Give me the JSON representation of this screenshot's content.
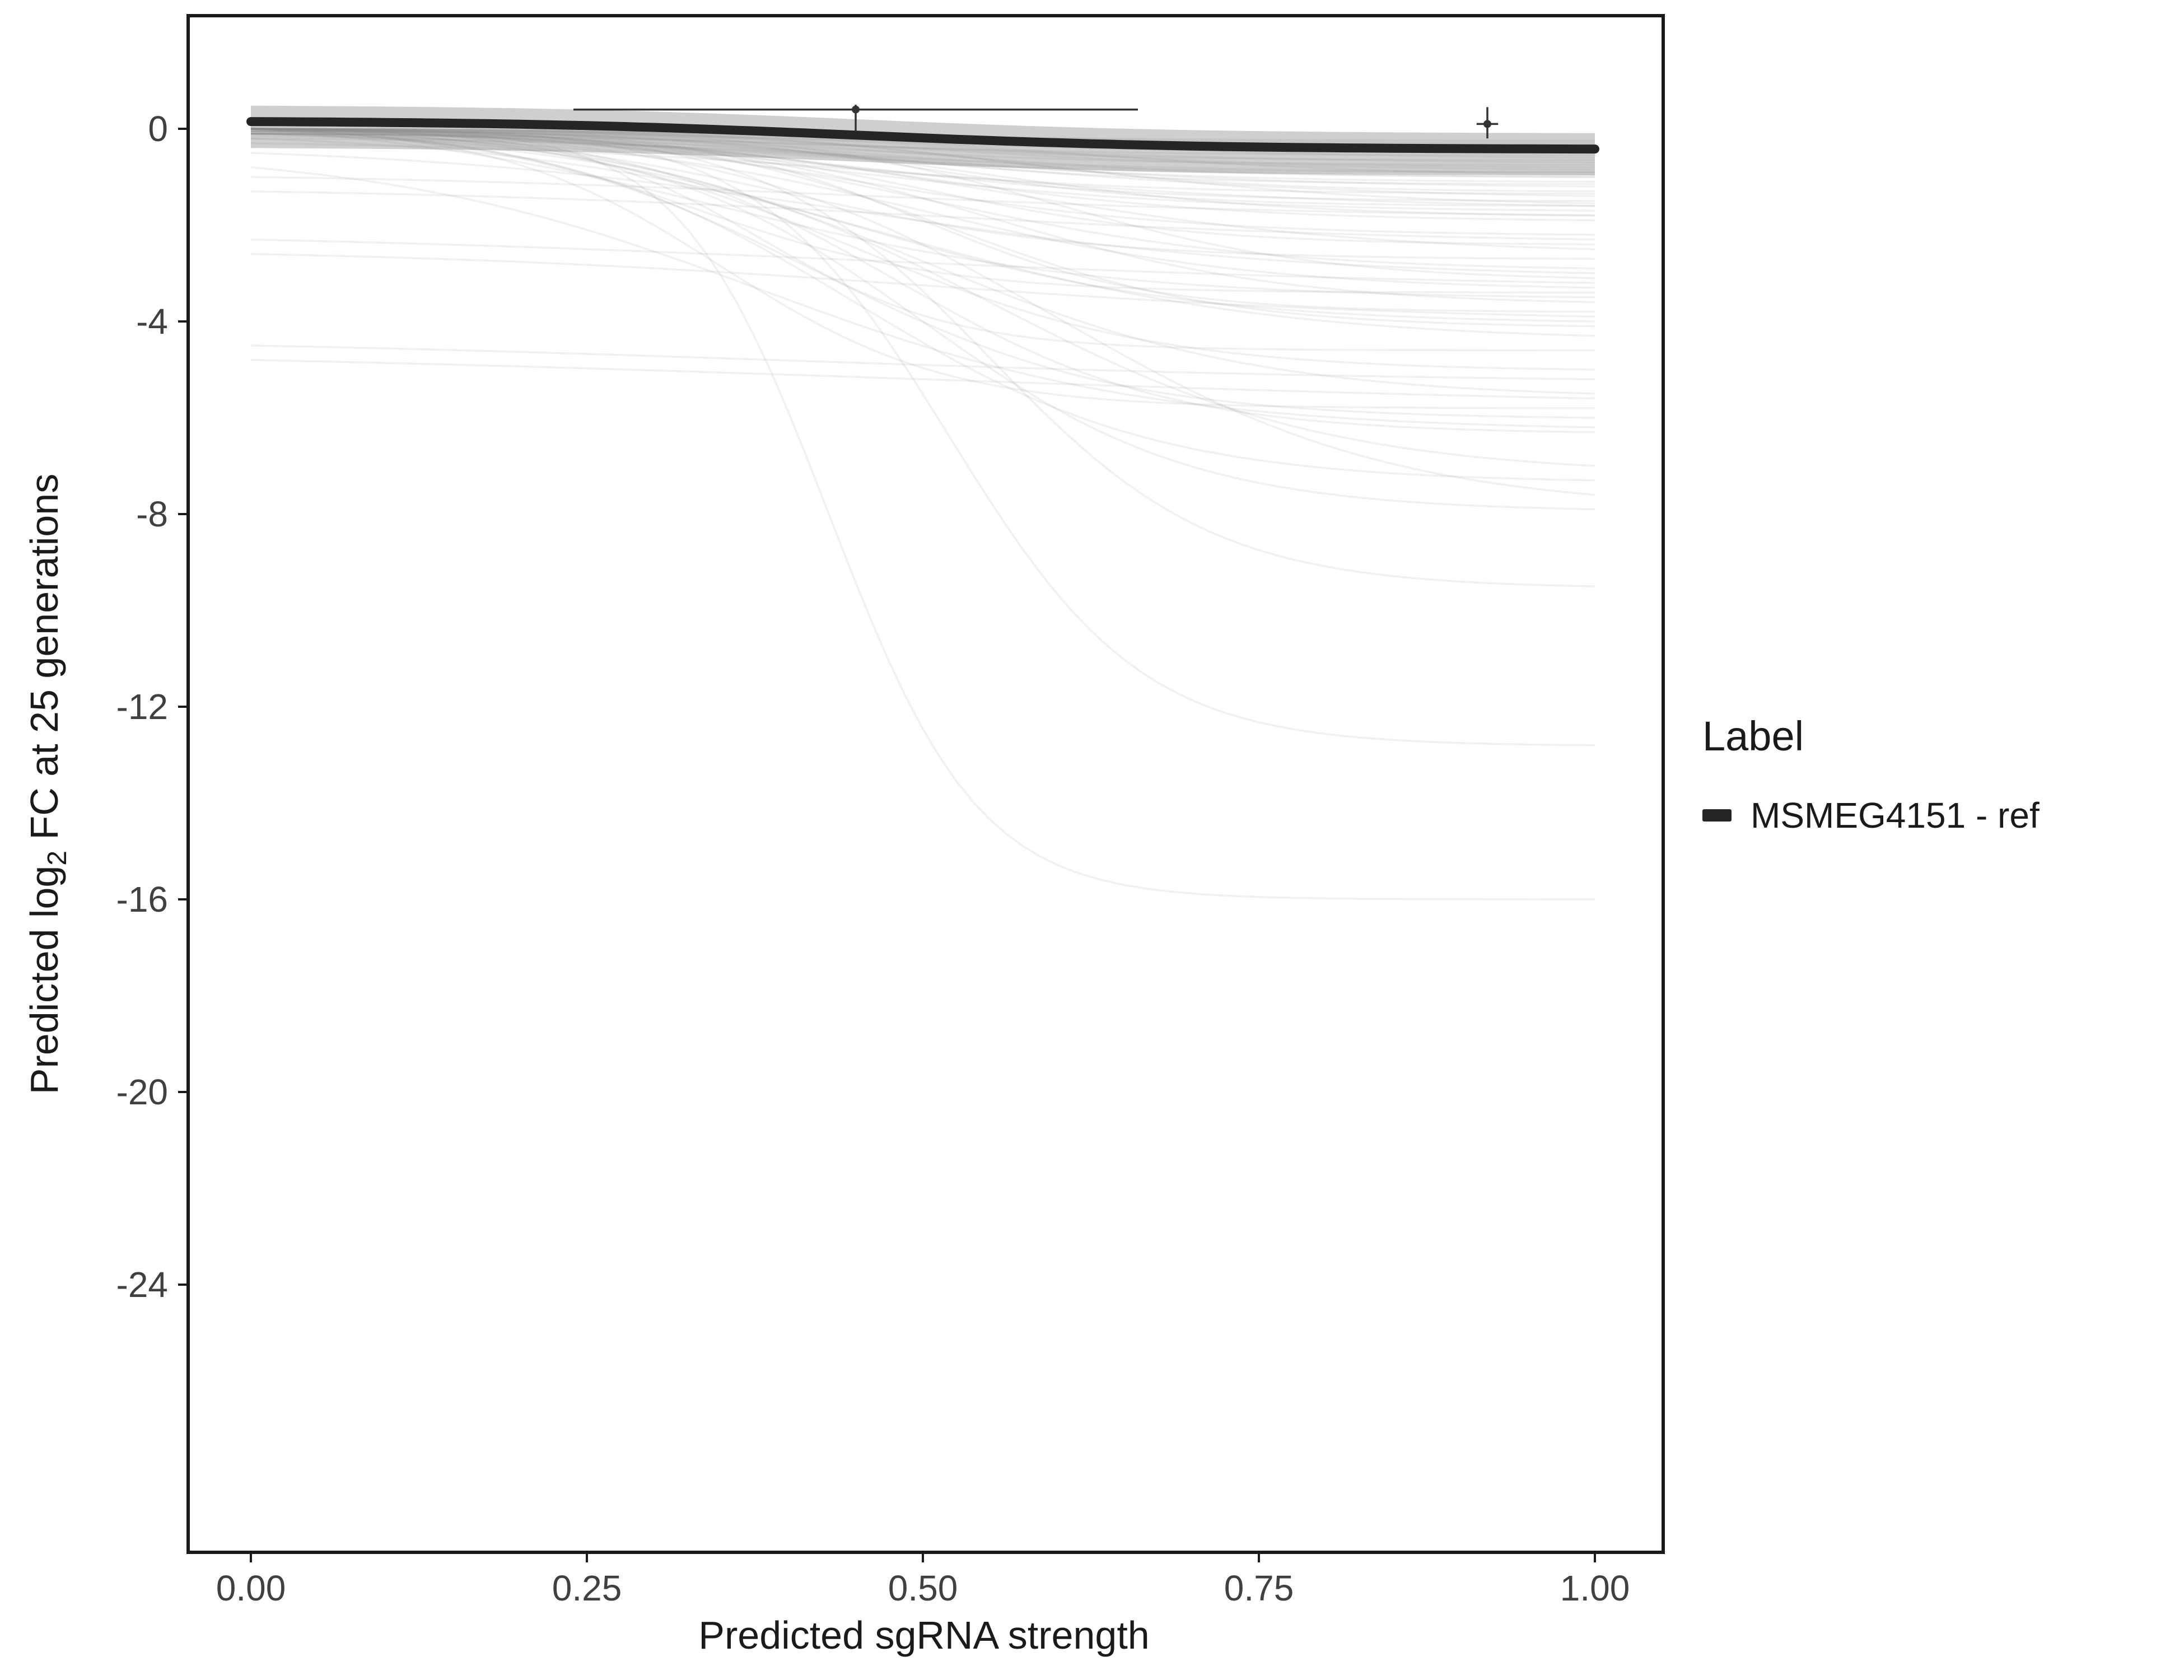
{
  "axes": {
    "x": {
      "title": "Predicted sgRNA strength"
    },
    "y": {
      "title_prefix": "Predicted  log",
      "title_sub": "2",
      "title_suffix": " FC at 25 generations"
    }
  },
  "legend": {
    "title": "Label",
    "items": [
      {
        "label": "MSMEG4151 - ref",
        "swatch_color": "#252525"
      }
    ]
  },
  "chart_data": {
    "type": "line",
    "title": "",
    "xlabel": "Predicted sgRNA strength",
    "ylabel": "Predicted log2 FC at 25 generations",
    "xlim": [
      -0.046,
      1.05
    ],
    "ylim": [
      -29.5,
      2.3
    ],
    "x_ticks": [
      0,
      0.25,
      0.5,
      0.75,
      1
    ],
    "x_tick_labels": [
      "0.00",
      "0.25",
      "0.50",
      "0.75",
      "1.00"
    ],
    "y_ticks": [
      0,
      -4,
      -8,
      -12,
      -16,
      -20,
      -24
    ],
    "y_tick_labels": [
      "0",
      "-4",
      "-8",
      "-12",
      "-16",
      "-20",
      "-24"
    ],
    "grid": false,
    "legend_position": "right",
    "reference_curve": {
      "name": "MSMEG4151 - ref",
      "color": "#252525",
      "stroke_width": 16,
      "y_start": 0.15,
      "y_end": -0.42,
      "midpoint": 0.45,
      "steepness": 8,
      "ribbon_above": 0.33,
      "ribbon_below": 0.55,
      "ribbon_color": "#a0a0a0",
      "ribbon_opacity": 0.5
    },
    "background_curves": {
      "color": "#8a8a8a",
      "opacity": 0.12,
      "stroke_width": 3.5,
      "params": [
        [
          0,
          -0.25,
          0.4,
          6
        ],
        [
          0,
          -0.3,
          0.5,
          7
        ],
        [
          -0.05,
          -0.4,
          0.45,
          8
        ],
        [
          0,
          -0.45,
          0.55,
          6
        ],
        [
          -0.1,
          -0.5,
          0.5,
          9
        ],
        [
          0,
          -0.55,
          0.35,
          7
        ],
        [
          -0.05,
          -0.6,
          0.6,
          8
        ],
        [
          0,
          -0.65,
          0.45,
          10
        ],
        [
          -0.1,
          -0.7,
          0.5,
          6
        ],
        [
          0,
          -0.75,
          0.4,
          8
        ],
        [
          -0.05,
          -0.8,
          0.55,
          9
        ],
        [
          0,
          -0.85,
          0.5,
          7
        ],
        [
          -0.1,
          -0.9,
          0.45,
          11
        ],
        [
          0,
          -0.95,
          0.6,
          8
        ],
        [
          -0.05,
          -1,
          0.5,
          9
        ],
        [
          0,
          -1,
          0.35,
          6
        ],
        [
          -0.15,
          -0.9,
          0.42,
          7
        ],
        [
          -0.2,
          -1.1,
          0.48,
          8
        ],
        [
          0,
          -1.15,
          0.45,
          9
        ],
        [
          -0.1,
          -1.2,
          0.5,
          7
        ],
        [
          0,
          -1.3,
          0.55,
          10
        ],
        [
          -0.05,
          -1.35,
          0.4,
          8
        ],
        [
          0,
          -1.4,
          0.5,
          6
        ],
        [
          -0.1,
          -1.5,
          0.45,
          9
        ],
        [
          0,
          -1.55,
          0.6,
          8
        ],
        [
          -0.05,
          -1.6,
          0.5,
          11
        ],
        [
          0,
          -1.7,
          0.42,
          7
        ],
        [
          -0.1,
          -1.8,
          0.55,
          9
        ],
        [
          0,
          -1.9,
          0.48,
          8
        ],
        [
          -0.3,
          -1.6,
          0.5,
          6
        ],
        [
          0,
          -2.2,
          0.45,
          8
        ],
        [
          -0.1,
          -2.4,
          0.5,
          10
        ],
        [
          0,
          -2.5,
          0.55,
          7
        ],
        [
          -0.05,
          -2.7,
          0.4,
          9
        ],
        [
          0,
          -2.9,
          0.5,
          8
        ],
        [
          -0.5,
          -3,
          0.45,
          6
        ],
        [
          0,
          -3.1,
          0.6,
          10
        ],
        [
          -0.1,
          -3.3,
          0.5,
          8
        ],
        [
          0,
          -3.5,
          0.35,
          7
        ],
        [
          -0.05,
          -3.6,
          0.55,
          9
        ],
        [
          0,
          -3.8,
          0.5,
          12
        ],
        [
          -0.1,
          -4,
          0.45,
          8
        ],
        [
          0,
          -4.1,
          0.52,
          10
        ],
        [
          -0.2,
          -4.3,
          0.48,
          7
        ],
        [
          -1.3,
          -2.3,
          0.5,
          5
        ],
        [
          -2.3,
          -3.2,
          0.45,
          4
        ],
        [
          -2.6,
          -3.9,
          0.5,
          5
        ],
        [
          -4.5,
          -5.2,
          0.4,
          4
        ],
        [
          -4.8,
          -5.6,
          0.5,
          3
        ],
        [
          -1,
          -1.8,
          0.45,
          5
        ],
        [
          -0.8,
          -6.2,
          0.38,
          7
        ],
        [
          0,
          -5,
          0.45,
          9
        ],
        [
          0,
          -5.5,
          0.5,
          8
        ],
        [
          0,
          -6,
          0.42,
          9
        ],
        [
          0,
          -6.3,
          0.48,
          10
        ],
        [
          -0.1,
          -7,
          0.55,
          8
        ],
        [
          0,
          -7.3,
          0.45,
          9
        ],
        [
          0,
          -7.6,
          0.6,
          8
        ],
        [
          -0.1,
          -7.9,
          0.5,
          10
        ],
        [
          0,
          -9.5,
          0.55,
          12
        ],
        [
          0,
          -12.8,
          0.52,
          14
        ],
        [
          0,
          -16,
          0.43,
          18
        ],
        [
          0,
          -5.8,
          0.35,
          12
        ],
        [
          0,
          -4.6,
          0.38,
          14
        ],
        [
          0,
          -3.4,
          0.33,
          11
        ]
      ]
    },
    "error_bars": [
      {
        "x": 0.45,
        "y": 0.4,
        "xmin": 0.24,
        "xmax": 0.66,
        "ymin": -0.05,
        "ymax": 0.5
      },
      {
        "x": 0.92,
        "y": 0.1,
        "xmin": 0.912,
        "xmax": 0.928,
        "ymin": -0.2,
        "ymax": 0.45
      }
    ]
  }
}
